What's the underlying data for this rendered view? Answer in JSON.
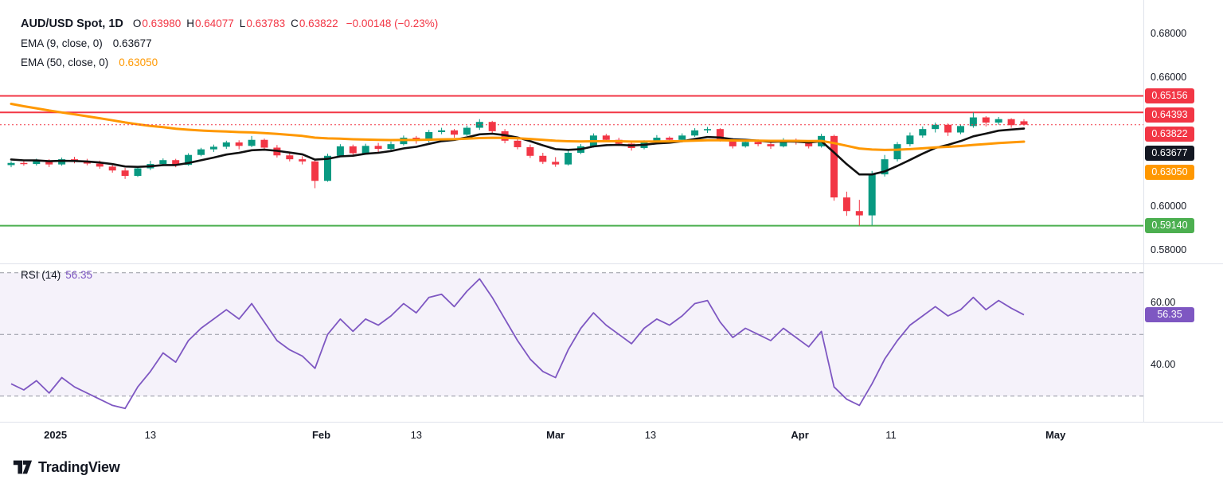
{
  "header": {
    "symbol": "AUD/USD Spot, 1D",
    "o_label": "O",
    "o": "0.63980",
    "h_label": "H",
    "h": "0.64077",
    "l_label": "L",
    "l": "0.63783",
    "c_label": "C",
    "c": "0.63822",
    "change": "−0.00148 (−0.23%)",
    "ema9_label": "EMA (9, close, 0)",
    "ema9_value": "0.63677",
    "ema50_label": "EMA (50, close, 0)",
    "ema50_value": "0.63050"
  },
  "rsi": {
    "label": "RSI (14)",
    "value": "56.35"
  },
  "price_axis": {
    "ticks": [
      {
        "label": "0.68000",
        "value": 0.68
      },
      {
        "label": "0.66000",
        "value": 0.66
      },
      {
        "label": "0.60000",
        "value": 0.6
      },
      {
        "label": "0.58000",
        "value": 0.58
      }
    ],
    "badges": [
      {
        "label": "0.65156",
        "value": 0.65156,
        "color": "#f23645",
        "name": "resistance-1-badge"
      },
      {
        "label": "0.64393",
        "value": 0.64393,
        "color": "#f23645",
        "name": "resistance-2-badge"
      },
      {
        "label": "0.63822",
        "value": 0.63822,
        "color": "#f23645",
        "name": "last-price-badge"
      },
      {
        "label": "0.63677",
        "value": 0.63677,
        "color": "#131722",
        "name": "ema9-badge"
      },
      {
        "label": "0.63050",
        "value": 0.6305,
        "color": "#ff9800",
        "name": "ema50-badge"
      },
      {
        "label": "0.59140",
        "value": 0.5914,
        "color": "#4caf50",
        "name": "support-badge"
      }
    ],
    "rsi_ticks": [
      {
        "label": "60.00",
        "value": 60
      },
      {
        "label": "40.00",
        "value": 40
      }
    ],
    "rsi_badge": {
      "label": "56.35",
      "value": 56.35,
      "color": "#7e57c2",
      "name": "rsi-badge"
    }
  },
  "time_axis": {
    "labels": [
      {
        "label": "2025",
        "i": 3.5,
        "major": true
      },
      {
        "label": "13",
        "i": 11,
        "major": false
      },
      {
        "label": "Feb",
        "i": 24.5,
        "major": true
      },
      {
        "label": "13",
        "i": 32,
        "major": false
      },
      {
        "label": "Mar",
        "i": 43,
        "major": true
      },
      {
        "label": "13",
        "i": 50.5,
        "major": false
      },
      {
        "label": "Apr",
        "i": 62.3,
        "major": true
      },
      {
        "label": "11",
        "i": 69.5,
        "major": false
      },
      {
        "label": "May",
        "i": 82.5,
        "major": true
      }
    ]
  },
  "footer": {
    "brand": "TradingView",
    "logo_icon": "tradingview-mark"
  },
  "chart_data": [
    {
      "type": "candlestick",
      "title": "AUD/USD Spot",
      "interval": "1D",
      "ylim": [
        0.578,
        0.696
      ],
      "y_ticks": [
        0.68,
        0.66,
        0.6,
        0.58
      ],
      "up_color": "#089981",
      "down_color": "#f23645",
      "current": {
        "open": 0.6398,
        "high": 0.64077,
        "low": 0.63783,
        "close": 0.63822,
        "change": -0.00148,
        "change_pct": -0.23
      },
      "horizontal_lines": [
        {
          "value": 0.65156,
          "color": "#f23645",
          "style": "solid",
          "name": "resistance-line-1"
        },
        {
          "value": 0.64393,
          "color": "#f23645",
          "style": "solid",
          "name": "resistance-line-2"
        },
        {
          "value": 0.63822,
          "color": "#f23645",
          "style": "dotted",
          "name": "last-price-line"
        },
        {
          "value": 0.5914,
          "color": "#4caf50",
          "style": "solid",
          "name": "support-line"
        }
      ],
      "emas": [
        {
          "name": "EMA 9",
          "period": 9,
          "seed": 0.6225,
          "color": "#111111",
          "width": 2.6,
          "last": 0.63677
        },
        {
          "name": "EMA 50",
          "period": 50,
          "seed": 0.649,
          "color": "#ff9800",
          "width": 3,
          "last": 0.6305
        }
      ],
      "candles": [
        [
          0.6195,
          0.6213,
          0.6185,
          0.6205
        ],
        [
          0.6205,
          0.6218,
          0.6192,
          0.62
        ],
        [
          0.62,
          0.6225,
          0.6193,
          0.6215
        ],
        [
          0.6215,
          0.6222,
          0.6186,
          0.6198
        ],
        [
          0.6198,
          0.623,
          0.6192,
          0.6222
        ],
        [
          0.6222,
          0.6233,
          0.6203,
          0.6212
        ],
        [
          0.6212,
          0.6224,
          0.6194,
          0.6202
        ],
        [
          0.6202,
          0.6216,
          0.6178,
          0.6188
        ],
        [
          0.6188,
          0.6196,
          0.616,
          0.617
        ],
        [
          0.617,
          0.6182,
          0.6131,
          0.6145
        ],
        [
          0.6145,
          0.619,
          0.614,
          0.618
        ],
        [
          0.618,
          0.6215,
          0.6172,
          0.62
        ],
        [
          0.62,
          0.6226,
          0.619,
          0.6218
        ],
        [
          0.6218,
          0.6224,
          0.6185,
          0.6196
        ],
        [
          0.6196,
          0.625,
          0.6192,
          0.6242
        ],
        [
          0.6242,
          0.6275,
          0.6236,
          0.6268
        ],
        [
          0.6268,
          0.629,
          0.6256,
          0.628
        ],
        [
          0.628,
          0.6308,
          0.627,
          0.63
        ],
        [
          0.63,
          0.631,
          0.6268,
          0.6284
        ],
        [
          0.6284,
          0.633,
          0.6278,
          0.6312
        ],
        [
          0.6312,
          0.6318,
          0.6262,
          0.6276
        ],
        [
          0.6276,
          0.6288,
          0.623,
          0.624
        ],
        [
          0.624,
          0.6254,
          0.6212,
          0.6222
        ],
        [
          0.6222,
          0.6236,
          0.6198,
          0.6212
        ],
        [
          0.6212,
          0.6218,
          0.6088,
          0.6122
        ],
        [
          0.6122,
          0.6248,
          0.6118,
          0.6238
        ],
        [
          0.6238,
          0.6292,
          0.6232,
          0.6282
        ],
        [
          0.6282,
          0.629,
          0.6238,
          0.625
        ],
        [
          0.625,
          0.6294,
          0.6243,
          0.6284
        ],
        [
          0.6284,
          0.6298,
          0.6254,
          0.627
        ],
        [
          0.627,
          0.6304,
          0.6262,
          0.6292
        ],
        [
          0.6292,
          0.6332,
          0.6286,
          0.6322
        ],
        [
          0.6322,
          0.633,
          0.6294,
          0.6308
        ],
        [
          0.6308,
          0.6358,
          0.63,
          0.6348
        ],
        [
          0.6348,
          0.6368,
          0.6338,
          0.6356
        ],
        [
          0.6356,
          0.6362,
          0.6322,
          0.6336
        ],
        [
          0.6336,
          0.6378,
          0.633,
          0.6368
        ],
        [
          0.6368,
          0.6408,
          0.6358,
          0.6395
        ],
        [
          0.6395,
          0.64,
          0.6342,
          0.6352
        ],
        [
          0.6352,
          0.6362,
          0.6296,
          0.6308
        ],
        [
          0.6308,
          0.632,
          0.6268,
          0.6278
        ],
        [
          0.6278,
          0.629,
          0.6228,
          0.6238
        ],
        [
          0.6238,
          0.6252,
          0.62,
          0.621
        ],
        [
          0.621,
          0.6232,
          0.6187,
          0.6198
        ],
        [
          0.6198,
          0.6262,
          0.6193,
          0.6252
        ],
        [
          0.6252,
          0.6292,
          0.6246,
          0.6282
        ],
        [
          0.6282,
          0.6342,
          0.6276,
          0.6332
        ],
        [
          0.6332,
          0.634,
          0.6302,
          0.6312
        ],
        [
          0.6312,
          0.6322,
          0.6284,
          0.6294
        ],
        [
          0.6294,
          0.6306,
          0.6262,
          0.6274
        ],
        [
          0.6274,
          0.631,
          0.6268,
          0.6302
        ],
        [
          0.6302,
          0.6334,
          0.6296,
          0.6322
        ],
        [
          0.6322,
          0.6328,
          0.6298,
          0.6312
        ],
        [
          0.6312,
          0.6342,
          0.6306,
          0.6332
        ],
        [
          0.6332,
          0.6366,
          0.6326,
          0.6356
        ],
        [
          0.6356,
          0.6372,
          0.6344,
          0.6362
        ],
        [
          0.6362,
          0.6366,
          0.6304,
          0.6314
        ],
        [
          0.6314,
          0.632,
          0.6272,
          0.6282
        ],
        [
          0.6282,
          0.631,
          0.6276,
          0.6302
        ],
        [
          0.6302,
          0.6314,
          0.6282,
          0.6292
        ],
        [
          0.6292,
          0.63,
          0.627,
          0.6282
        ],
        [
          0.6282,
          0.632,
          0.6277,
          0.6312
        ],
        [
          0.6312,
          0.6318,
          0.629,
          0.6302
        ],
        [
          0.6302,
          0.631,
          0.6272,
          0.6282
        ],
        [
          0.6282,
          0.634,
          0.6276,
          0.633
        ],
        [
          0.633,
          0.6336,
          0.603,
          0.6045
        ],
        [
          0.6045,
          0.6072,
          0.596,
          0.5982
        ],
        [
          0.5982,
          0.6034,
          0.5914,
          0.5962
        ],
        [
          0.5962,
          0.6168,
          0.5916,
          0.6152
        ],
        [
          0.6152,
          0.6242,
          0.6142,
          0.6222
        ],
        [
          0.6222,
          0.6302,
          0.6212,
          0.6292
        ],
        [
          0.6292,
          0.6346,
          0.6282,
          0.6332
        ],
        [
          0.6332,
          0.6374,
          0.6322,
          0.6362
        ],
        [
          0.6362,
          0.6392,
          0.6346,
          0.6382
        ],
        [
          0.6382,
          0.6388,
          0.633,
          0.6346
        ],
        [
          0.6346,
          0.6384,
          0.6338,
          0.6376
        ],
        [
          0.6376,
          0.6439,
          0.6368,
          0.6416
        ],
        [
          0.6416,
          0.6422,
          0.6374,
          0.6392
        ],
        [
          0.6392,
          0.6418,
          0.6382,
          0.6408
        ],
        [
          0.6408,
          0.6412,
          0.6368,
          0.638
        ],
        [
          0.6398,
          0.64077,
          0.63783,
          0.63822
        ]
      ]
    },
    {
      "type": "line",
      "title": "RSI (14)",
      "color": "#7e57c2",
      "scale": [
        23.5,
        72.5
      ],
      "levels": [
        70,
        50,
        30
      ],
      "level_color": "#9598a1",
      "band": [
        30,
        70
      ],
      "band_fill": "rgba(126,87,194,0.08)",
      "last": 56.35,
      "values": [
        34,
        32,
        35,
        31,
        36,
        33,
        31,
        29,
        27,
        26,
        33,
        38,
        44,
        41,
        48,
        52,
        55,
        58,
        55,
        60,
        54,
        48,
        45,
        43,
        39,
        50,
        55,
        51,
        55,
        53,
        56,
        60,
        57,
        62,
        63,
        59,
        64,
        68,
        62,
        55,
        48,
        42,
        38,
        36,
        45,
        52,
        57,
        53,
        50,
        47,
        52,
        55,
        53,
        56,
        60,
        61,
        54,
        49,
        52,
        50,
        48,
        52,
        49,
        46,
        51,
        33,
        29,
        27,
        34,
        42,
        48,
        53,
        56,
        59,
        56,
        58,
        62,
        58,
        61,
        58.5,
        56.35
      ]
    }
  ]
}
